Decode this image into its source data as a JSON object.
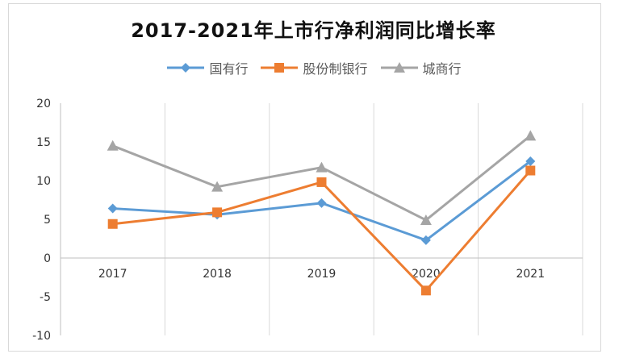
{
  "chart_data": {
    "type": "line",
    "title": "2017-2021年上市行净利润同比增长率",
    "categories": [
      "2017",
      "2018",
      "2019",
      "2020",
      "2021"
    ],
    "ylim": [
      -10,
      20
    ],
    "yticks": [
      20,
      15,
      10,
      5,
      0,
      -5,
      -10
    ],
    "grid": "vertical",
    "legend_position": "top",
    "series": [
      {
        "name": "国有行",
        "color": "#5B9BD5",
        "marker": "diamond",
        "values": [
          6.4,
          5.6,
          7.1,
          2.3,
          12.5
        ]
      },
      {
        "name": "股份制银行",
        "color": "#ED7D31",
        "marker": "square",
        "values": [
          4.4,
          5.9,
          9.8,
          -4.2,
          11.3
        ]
      },
      {
        "name": "城商行",
        "color": "#A5A5A5",
        "marker": "triangle",
        "values": [
          14.5,
          9.2,
          11.7,
          4.9,
          15.8
        ]
      }
    ]
  }
}
